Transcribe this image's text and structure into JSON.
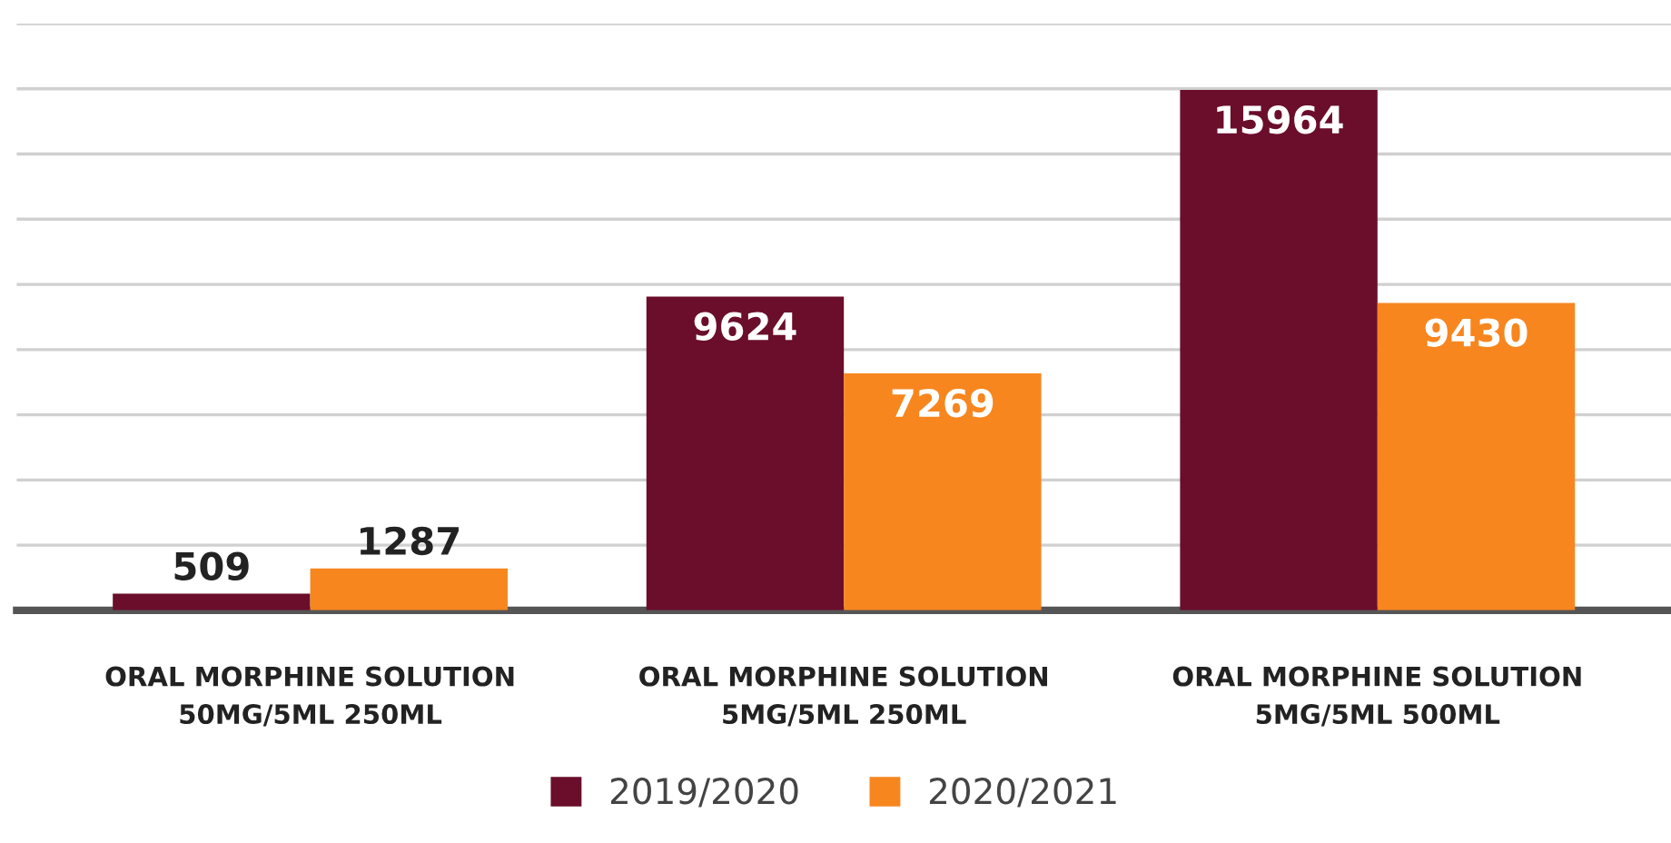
{
  "chart_data": {
    "type": "bar",
    "categories": [
      "ORAL MORPHINE SOLUTION\n50MG/5ML 250ML",
      "ORAL MORPHINE SOLUTION\n5MG/5ML 250ML",
      "ORAL MORPHINE SOLUTION\n5MG/5ML 500ML"
    ],
    "series": [
      {
        "name": "2019/2020",
        "color": "#6a0e2c",
        "values": [
          509,
          9624,
          15964
        ]
      },
      {
        "name": "2020/2021",
        "color": "#f7861f",
        "values": [
          1287,
          7269,
          9430
        ]
      }
    ],
    "ylim": [
      0,
      18000
    ],
    "yticks": [
      {
        "value": 0,
        "label": null
      },
      {
        "value": 2000,
        "label": null
      },
      {
        "value": 4000,
        "label": null
      },
      {
        "value": 6000,
        "label": null
      },
      {
        "value": 8000,
        "label": null
      },
      {
        "value": 10000,
        "label": null
      },
      {
        "value": 12000,
        "label": null
      },
      {
        "value": 14000,
        "label": null
      },
      {
        "value": 16000,
        "label": null
      },
      {
        "value": 18000,
        "label": null
      }
    ],
    "tick_labels": "x",
    "grid": "y",
    "data_labels": true,
    "legend": "bottom"
  }
}
